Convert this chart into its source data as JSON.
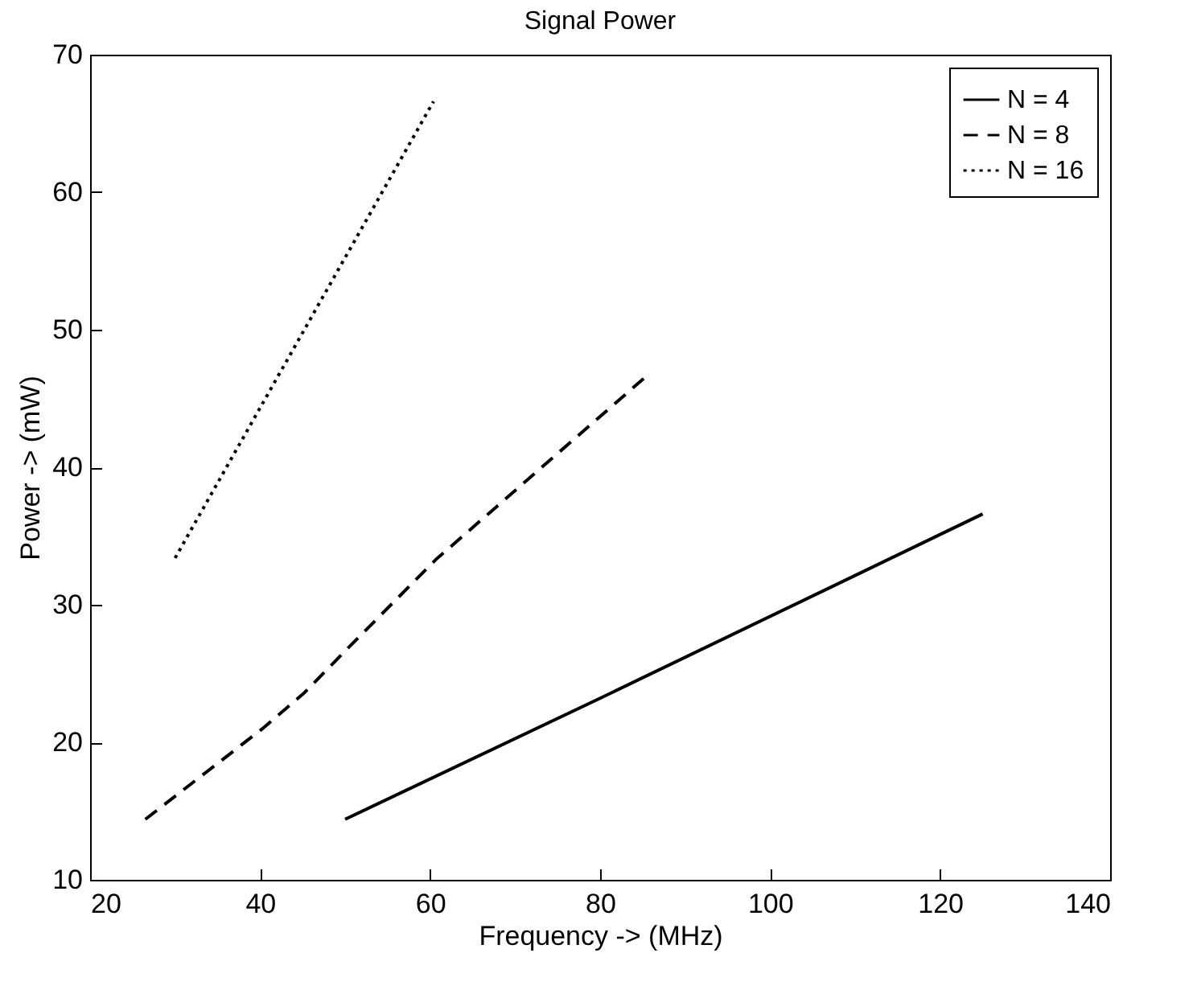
{
  "chart_data": {
    "type": "line",
    "title": "Signal Power",
    "xlabel": "Frequency -> (MHz)",
    "ylabel": "Power -> (mW)",
    "xlim": [
      20,
      140
    ],
    "xticks": [
      20,
      40,
      60,
      80,
      100,
      120,
      140
    ],
    "ylim": [
      10,
      70
    ],
    "yticks": [
      10,
      20,
      30,
      40,
      50,
      60,
      70
    ],
    "grid": false,
    "legend": "top right",
    "series": [
      {
        "name": "N = 4",
        "color": "#000000",
        "line_style": "solid",
        "x": [
          50,
          80,
          125
        ],
        "values": [
          14.4,
          23.2,
          36.6
        ]
      },
      {
        "name": "N = 8",
        "color": "#000000",
        "line_style": "dashed",
        "x": [
          26.5,
          40.3,
          45.2,
          50.9,
          60.7,
          85.4
        ],
        "values": [
          14.4,
          21.0,
          23.6,
          27.2,
          33.3,
          46.6
        ]
      },
      {
        "name": "N = 16",
        "color": "#000000",
        "line_style": "dotted",
        "x": [
          30,
          60.4
        ],
        "values": [
          33.4,
          66.6
        ]
      }
    ]
  }
}
